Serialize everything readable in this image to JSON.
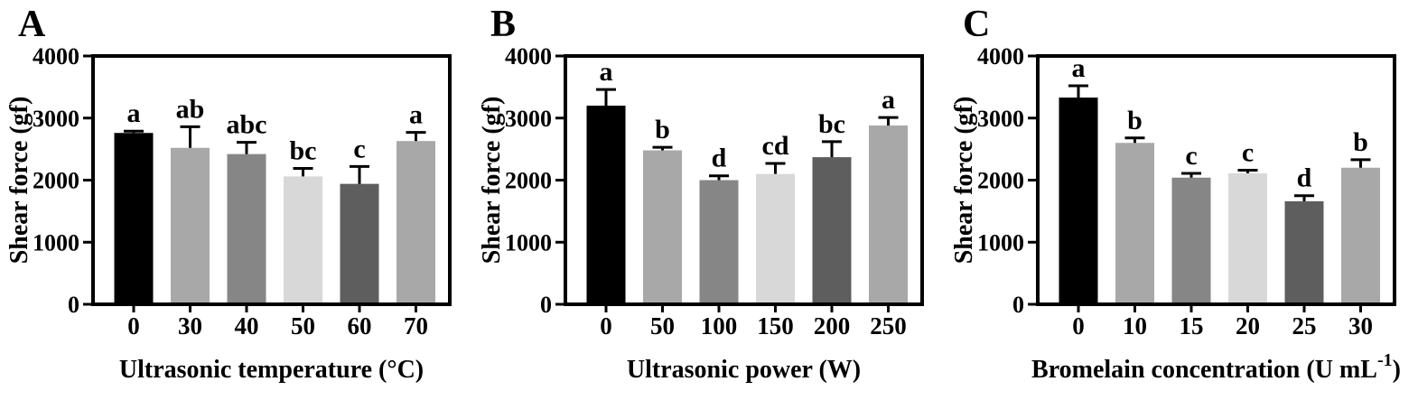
{
  "figure": {
    "background": "#FFFFFF",
    "text_color": "#000000",
    "axis_color": "#000000"
  },
  "chart_data": [
    {
      "type": "bar",
      "panel_label": "A",
      "title": "",
      "ylabel": "Shear force (gf)",
      "xlabel": "Ultrasonic temperature (°C)",
      "xlabel_rich": [
        {
          "text": "Ultrasonic temperature (°C)",
          "sup": false
        }
      ],
      "categories": [
        "0",
        "30",
        "40",
        "50",
        "60",
        "70"
      ],
      "values": [
        2760,
        2520,
        2420,
        2060,
        1940,
        2630
      ],
      "errors_upper": [
        30,
        340,
        190,
        130,
        280,
        140
      ],
      "sig_letters": [
        "a",
        "ab",
        "abc",
        "bc",
        "c",
        "a"
      ],
      "bar_colors": [
        "#000000",
        "#A8A8A8",
        "#868686",
        "#D8D8D8",
        "#5E5E5E",
        "#A8A8A8"
      ],
      "ylim": [
        0,
        4000
      ],
      "yticks": [
        0,
        1000,
        2000,
        3000,
        4000
      ],
      "grid": false,
      "legend": "none"
    },
    {
      "type": "bar",
      "panel_label": "B",
      "title": "",
      "ylabel": "Shear force (gf)",
      "xlabel": "Ultrasonic power (W)",
      "xlabel_rich": [
        {
          "text": "Ultrasonic power (W)",
          "sup": false
        }
      ],
      "categories": [
        "0",
        "50",
        "100",
        "150",
        "200",
        "250"
      ],
      "values": [
        3200,
        2480,
        2000,
        2100,
        2370,
        2880
      ],
      "errors_upper": [
        260,
        50,
        70,
        170,
        250,
        130
      ],
      "sig_letters": [
        "a",
        "b",
        "d",
        "cd",
        "bc",
        "a"
      ],
      "bar_colors": [
        "#000000",
        "#A8A8A8",
        "#868686",
        "#D8D8D8",
        "#5E5E5E",
        "#A8A8A8"
      ],
      "ylim": [
        0,
        4000
      ],
      "yticks": [
        0,
        1000,
        2000,
        3000,
        4000
      ],
      "grid": false,
      "legend": "none"
    },
    {
      "type": "bar",
      "panel_label": "C",
      "title": "",
      "ylabel": "Shear force (gf)",
      "xlabel": "Bromelain concentration (U mL⁻¹)",
      "xlabel_rich": [
        {
          "text": "Bromelain concentration (U mL",
          "sup": false
        },
        {
          "text": "-1",
          "sup": true
        },
        {
          "text": ")",
          "sup": false
        }
      ],
      "categories": [
        "0",
        "10",
        "15",
        "20",
        "25",
        "30"
      ],
      "values": [
        3330,
        2600,
        2040,
        2110,
        1660,
        2200
      ],
      "errors_upper": [
        190,
        80,
        70,
        50,
        90,
        130
      ],
      "sig_letters": [
        "a",
        "b",
        "c",
        "c",
        "d",
        "b"
      ],
      "bar_colors": [
        "#000000",
        "#A8A8A8",
        "#868686",
        "#D8D8D8",
        "#5E5E5E",
        "#A8A8A8"
      ],
      "ylim": [
        0,
        4000
      ],
      "yticks": [
        0,
        1000,
        2000,
        3000,
        4000
      ],
      "grid": false,
      "legend": "none"
    }
  ]
}
